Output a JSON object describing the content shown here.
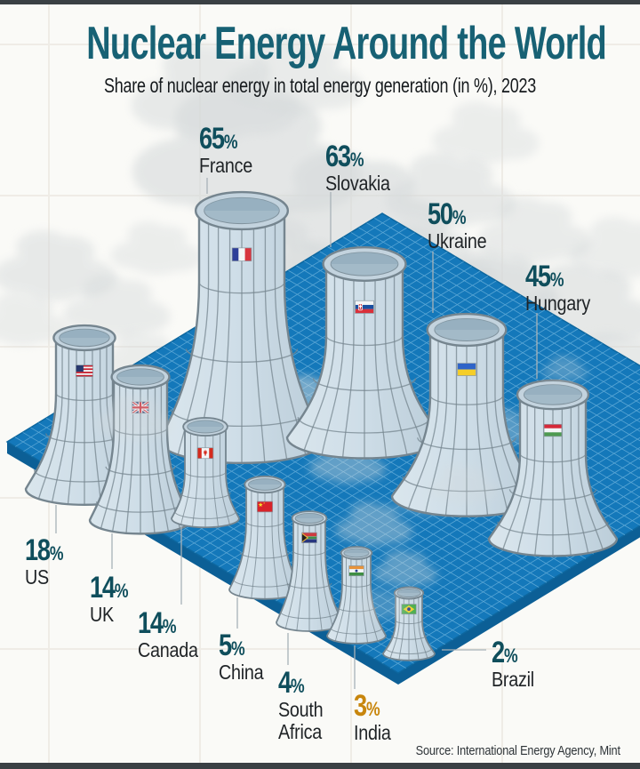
{
  "header": {
    "title": "Nuclear Energy Around the World",
    "subtitle": "Share of nuclear energy in total energy generation (in %), 2023"
  },
  "footer": {
    "source": "Source: International Energy Agency, Mint"
  },
  "colors": {
    "accent_teal": "#176174",
    "value_teal": "#0F4E5C",
    "india_orange": "#C8860D",
    "country_text": "#1F2326",
    "subtitle_text": "#15191C",
    "source_text": "#2E3438",
    "bar_dark": "#3A4044",
    "background": "#FAFAF7",
    "bg_grid": "#EFECE6",
    "platform_blue": "#1478BA",
    "platform_side": "#0C5F96",
    "platform_grid": "#66AEDA",
    "platform_edge": "#0D679F",
    "tower_fill": "#CFDEE8",
    "tower_fill_light": "#DAE6ED",
    "tower_fill_dark": "#BBCDD9",
    "tower_stroke": "#75858F",
    "rim_fill": "#C3D3DE",
    "mouth_fill": "#A3BAC8",
    "mouth_shade": "#92ACBC",
    "steam_grey": "#D6DADB",
    "leader_grey": "#A8B2B8"
  },
  "chart_data": {
    "type": "bar",
    "style": "pictogram-cooling-towers-on-isometric-grid",
    "title": "Nuclear Energy Around the World",
    "subtitle": "Share of nuclear energy in total energy generation (in %), 2023",
    "unit": "%",
    "year": "2023",
    "categories": [
      "France",
      "Slovakia",
      "Ukraine",
      "Hungary",
      "US",
      "UK",
      "Canada",
      "China",
      "South Africa",
      "India",
      "Brazil"
    ],
    "values": [
      65,
      63,
      50,
      45,
      18,
      14,
      14,
      5,
      4,
      3,
      2
    ],
    "series": [
      {
        "country": "France",
        "value": 65,
        "flag": "fr",
        "highlight": false
      },
      {
        "country": "Slovakia",
        "value": 63,
        "flag": "sk",
        "highlight": false
      },
      {
        "country": "Ukraine",
        "value": 50,
        "flag": "ua",
        "highlight": false
      },
      {
        "country": "Hungary",
        "value": 45,
        "flag": "hu",
        "highlight": false
      },
      {
        "country": "US",
        "value": 18,
        "flag": "us",
        "highlight": false
      },
      {
        "country": "UK",
        "value": 14,
        "flag": "gb",
        "highlight": false
      },
      {
        "country": "Canada",
        "value": 14,
        "flag": "ca",
        "highlight": false
      },
      {
        "country": "China",
        "value": 5,
        "flag": "cn",
        "highlight": false
      },
      {
        "country": "South Africa",
        "value": 4,
        "flag": "za",
        "highlight": false
      },
      {
        "country": "India",
        "value": 3,
        "flag": "in",
        "highlight": true
      },
      {
        "country": "Brazil",
        "value": 2,
        "flag": "br",
        "highlight": false
      }
    ],
    "source": "Source: International Energy Agency, Mint",
    "legend": "none",
    "value_labels": "beside each tower, teal; India highlighted orange"
  }
}
